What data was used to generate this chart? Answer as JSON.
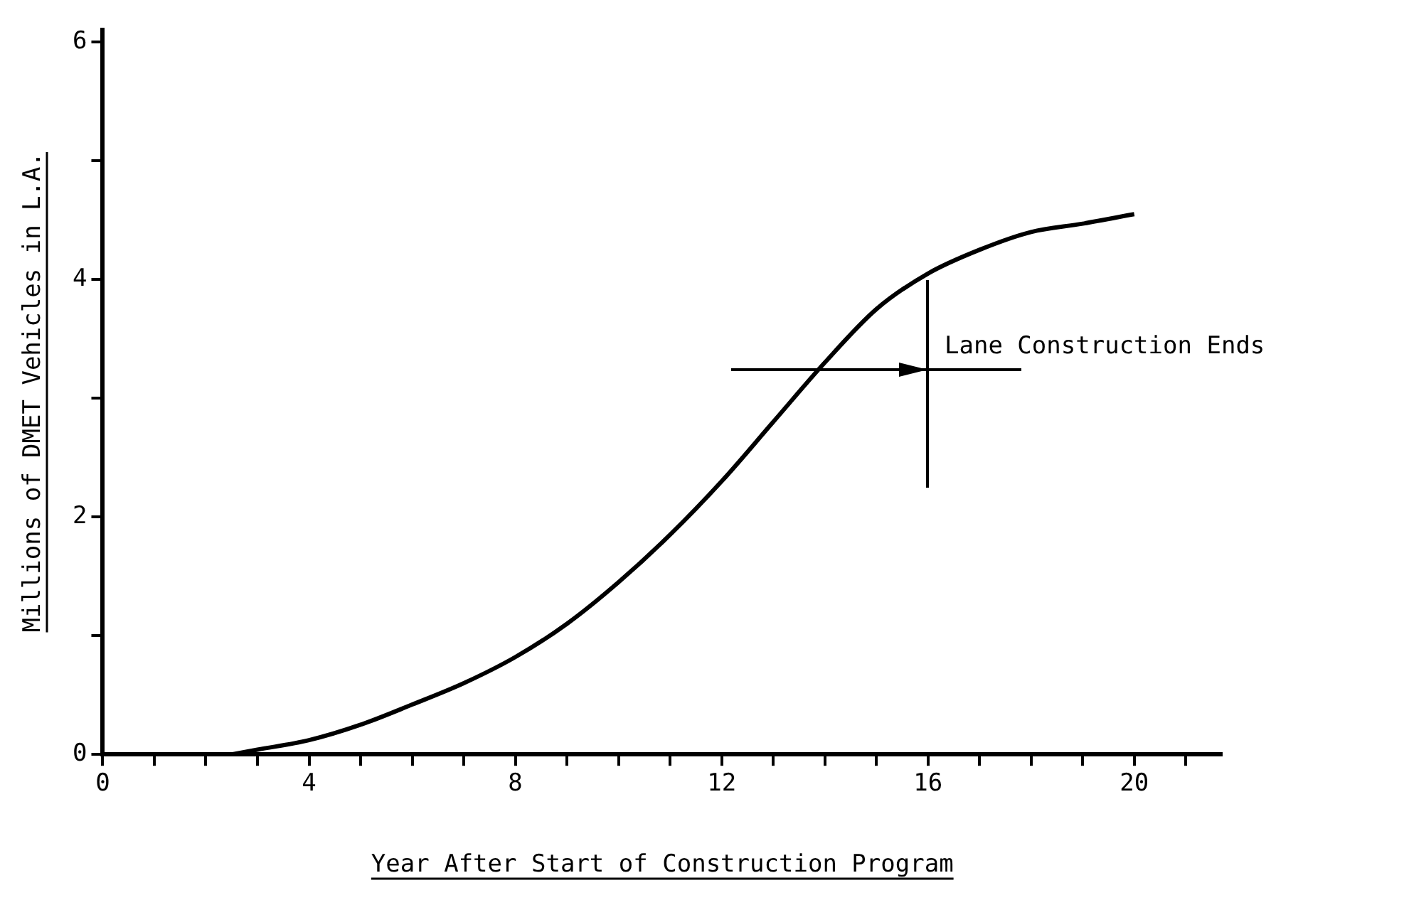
{
  "chart_data": {
    "type": "line",
    "xlabel": "Year After Start of Construction Program",
    "ylabel": "Millions of DMET Vehicles in L.A.",
    "x": [
      2.5,
      3,
      4,
      5,
      6,
      7,
      8,
      9,
      10,
      11,
      12,
      13,
      14,
      15,
      16,
      17,
      18,
      19,
      20
    ],
    "series": [
      {
        "color": "#000000",
        "values": [
          0,
          0.04,
          0.12,
          0.25,
          0.42,
          0.6,
          0.82,
          1.1,
          1.45,
          1.85,
          2.3,
          2.8,
          3.3,
          3.75,
          4.05,
          4.25,
          4.4,
          4.47,
          4.55
        ]
      }
    ],
    "xlim": [
      0,
      21.7
    ],
    "xticks": [
      0,
      {
        "value": 1,
        "label": null
      },
      {
        "value": 2,
        "label": null
      },
      {
        "value": 3,
        "label": null
      },
      4,
      {
        "value": 5,
        "label": null
      },
      {
        "value": 6,
        "label": null
      },
      {
        "value": 7,
        "label": null
      },
      8,
      {
        "value": 9,
        "label": null
      },
      {
        "value": 10,
        "label": null
      },
      {
        "value": 11,
        "label": null
      },
      12,
      {
        "value": 13,
        "label": null
      },
      {
        "value": 14,
        "label": null
      },
      {
        "value": 15,
        "label": null
      },
      16,
      {
        "value": 17,
        "label": null
      },
      {
        "value": 18,
        "label": null
      },
      {
        "value": 19,
        "label": null
      },
      20,
      {
        "value": 21,
        "label": null
      }
    ],
    "ylim": [
      0,
      6.1
    ],
    "yticks": [
      0,
      {
        "value": 1,
        "label": null
      },
      2,
      {
        "value": 3,
        "label": null
      },
      4,
      {
        "value": 5,
        "label": null
      },
      6
    ],
    "annotations": [
      "Lane Construction Ends"
    ],
    "grid": false,
    "legend": false,
    "marker": "none",
    "line_style": "solid"
  }
}
